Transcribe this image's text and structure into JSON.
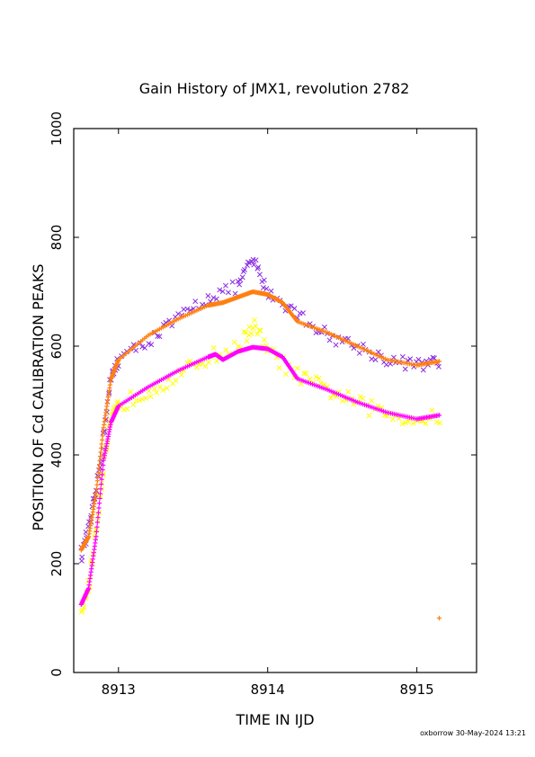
{
  "chart_data": {
    "type": "scatter",
    "title": "Gain History of JMX1, revolution 2782",
    "xlabel": "TIME IN IJD",
    "ylabel": "POSITION OF Cd CALIBRATION PEAKS",
    "xlim": [
      8912.7,
      8915.4
    ],
    "ylim": [
      0,
      1000
    ],
    "x_ticks": [
      8913,
      8914,
      8915
    ],
    "y_ticks": [
      0,
      200,
      400,
      600,
      800,
      1000
    ],
    "grid": false,
    "legend": "none",
    "series": [
      {
        "marker": "x",
        "color": "#8a2be2",
        "scatter_offset": 12,
        "points": [
          [
            8912.75,
            215
          ],
          [
            8912.8,
            260
          ],
          [
            8912.85,
            330
          ],
          [
            8912.9,
            430
          ],
          [
            8912.95,
            540
          ],
          [
            8913.0,
            575
          ],
          [
            8913.2,
            610
          ],
          [
            8913.4,
            650
          ],
          [
            8913.6,
            690
          ],
          [
            8913.8,
            710
          ],
          [
            8913.9,
            760
          ],
          [
            8914.0,
            700
          ],
          [
            8914.2,
            660
          ],
          [
            8914.4,
            620
          ],
          [
            8914.6,
            600
          ],
          [
            8914.8,
            575
          ],
          [
            8915.0,
            565
          ],
          [
            8915.15,
            570
          ]
        ]
      },
      {
        "marker": "+",
        "color": "#ff7f0e",
        "scatter_offset": 0,
        "points": [
          [
            8912.75,
            225
          ],
          [
            8912.8,
            250
          ],
          [
            8912.85,
            330
          ],
          [
            8912.9,
            450
          ],
          [
            8912.95,
            540
          ],
          [
            8913.0,
            575
          ],
          [
            8913.2,
            620
          ],
          [
            8913.4,
            650
          ],
          [
            8913.6,
            675
          ],
          [
            8913.7,
            680
          ],
          [
            8913.8,
            690
          ],
          [
            8913.9,
            700
          ],
          [
            8914.0,
            695
          ],
          [
            8914.1,
            680
          ],
          [
            8914.2,
            645
          ],
          [
            8914.4,
            625
          ],
          [
            8914.6,
            600
          ],
          [
            8914.8,
            575
          ],
          [
            8915.0,
            565
          ],
          [
            8915.15,
            572
          ]
        ],
        "outliers": [
          [
            8915.15,
            100
          ]
        ]
      },
      {
        "marker": "x",
        "color": "#ffff00",
        "scatter_offset": 15,
        "points": [
          [
            8912.75,
            110
          ],
          [
            8912.8,
            160
          ],
          [
            8912.85,
            260
          ],
          [
            8912.9,
            380
          ],
          [
            8912.95,
            460
          ],
          [
            8913.0,
            490
          ],
          [
            8913.2,
            520
          ],
          [
            8913.4,
            545
          ],
          [
            8913.6,
            580
          ],
          [
            8913.8,
            595
          ],
          [
            8913.9,
            640
          ],
          [
            8914.0,
            590
          ],
          [
            8914.2,
            545
          ],
          [
            8914.4,
            520
          ],
          [
            8914.6,
            495
          ],
          [
            8914.8,
            475
          ],
          [
            8915.0,
            465
          ],
          [
            8915.15,
            470
          ]
        ]
      },
      {
        "marker": "+",
        "color": "#ff00ff",
        "scatter_offset": 0,
        "points": [
          [
            8912.75,
            125
          ],
          [
            8912.8,
            155
          ],
          [
            8912.85,
            250
          ],
          [
            8912.9,
            390
          ],
          [
            8912.95,
            460
          ],
          [
            8913.0,
            490
          ],
          [
            8913.2,
            525
          ],
          [
            8913.4,
            555
          ],
          [
            8913.6,
            580
          ],
          [
            8913.65,
            585
          ],
          [
            8913.7,
            575
          ],
          [
            8913.8,
            590
          ],
          [
            8913.9,
            598
          ],
          [
            8914.0,
            595
          ],
          [
            8914.1,
            580
          ],
          [
            8914.2,
            540
          ],
          [
            8914.4,
            520
          ],
          [
            8914.6,
            497
          ],
          [
            8914.8,
            478
          ],
          [
            8915.0,
            466
          ],
          [
            8915.15,
            473
          ]
        ]
      }
    ]
  },
  "footer": "oxborrow 30-May-2024 13:21"
}
